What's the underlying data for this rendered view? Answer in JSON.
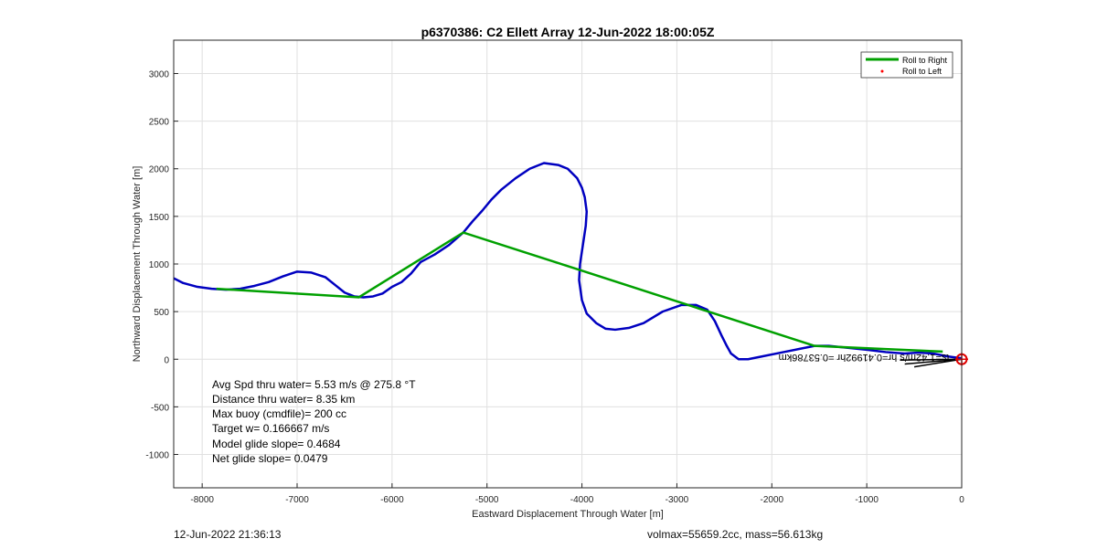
{
  "chart_data": {
    "type": "line",
    "title": "p6370386: C2 Ellett Array 12-Jun-2022 18:00:05Z",
    "xlabel": "Eastward Displacement Through Water [m]",
    "ylabel": "Northward Displacement Through Water [m]",
    "xlim": [
      -8300,
      0
    ],
    "ylim": [
      -1350,
      3350
    ],
    "xticks": [
      -8000,
      -7000,
      -6000,
      -5000,
      -4000,
      -3000,
      -2000,
      -1000,
      0
    ],
    "yticks": [
      -1000,
      -500,
      0,
      500,
      1000,
      1500,
      2000,
      2500,
      3000
    ],
    "grid": true,
    "legend_position": "top-right",
    "legend": [
      {
        "label": "Roll to Right",
        "color": "#00a000",
        "style": "line"
      },
      {
        "label": "Roll to Left",
        "color": "#ff0000",
        "style": "dot"
      }
    ],
    "series": [
      {
        "name": "track",
        "color": "#0000c0",
        "x": [
          0,
          -150,
          -300,
          -450,
          -600,
          -800,
          -1000,
          -1200,
          -1400,
          -1550,
          -1700,
          -1900,
          -2100,
          -2250,
          -2350,
          -2430,
          -2480,
          -2530,
          -2600,
          -2680,
          -2800,
          -2950,
          -3150,
          -3350,
          -3500,
          -3650,
          -3750,
          -3850,
          -3950,
          -4000,
          -4030,
          -4020,
          -3990,
          -3960,
          -3950,
          -3970,
          -4000,
          -4050,
          -4150,
          -4250,
          -4400,
          -4550,
          -4700,
          -4850,
          -4950,
          -5050,
          -5150,
          -5250,
          -5400,
          -5550,
          -5700,
          -5800,
          -5900,
          -6000,
          -6100,
          -6200,
          -6300,
          -6400,
          -6500,
          -6600,
          -6700,
          -6850,
          -7000,
          -7150,
          -7300,
          -7450,
          -7600,
          -7750,
          -7900,
          -8050,
          -8200,
          -8300
        ],
        "y": [
          10,
          30,
          60,
          70,
          60,
          75,
          100,
          120,
          140,
          140,
          110,
          70,
          30,
          0,
          0,
          60,
          150,
          250,
          400,
          520,
          570,
          570,
          500,
          380,
          330,
          310,
          320,
          380,
          480,
          620,
          830,
          1000,
          1200,
          1400,
          1550,
          1700,
          1800,
          1900,
          2000,
          2040,
          2060,
          2000,
          1900,
          1780,
          1680,
          1560,
          1450,
          1330,
          1200,
          1100,
          1020,
          900,
          810,
          760,
          690,
          660,
          650,
          660,
          700,
          780,
          860,
          910,
          920,
          870,
          810,
          770,
          740,
          730,
          740,
          760,
          800,
          850
        ]
      },
      {
        "name": "roll",
        "color": "#00a000",
        "x": [
          -200,
          -1550,
          -4030,
          -5250,
          -6350,
          -7850
        ],
        "y": [
          80,
          140,
          940,
          1330,
          650,
          740
        ]
      }
    ],
    "arrows": {
      "color": "#000000",
      "x": [
        -500,
        -600,
        -650
      ],
      "y": [
        -80,
        -50,
        -10
      ]
    },
    "end_marker": {
      "x": 0,
      "y": 0,
      "color": "#e00000"
    },
    "plot_text": {
      "rotated_label": "ts=1.42m/s hr=0.41992hr =0.53786km"
    },
    "annotation_lines": [
      "Avg Spd thru water=  5.53 m/s @ 275.8 °T",
      "Distance thru water=  8.35 km",
      "Max buoy (cmdfile)= 200 cc",
      "Target w= 0.166667 m/s",
      "Model glide slope= 0.4684",
      "Net glide slope= 0.0479"
    ]
  },
  "footer": {
    "left": "12-Jun-2022 21:36:13",
    "right": "volmax=55659.2cc, mass=56.613kg"
  }
}
